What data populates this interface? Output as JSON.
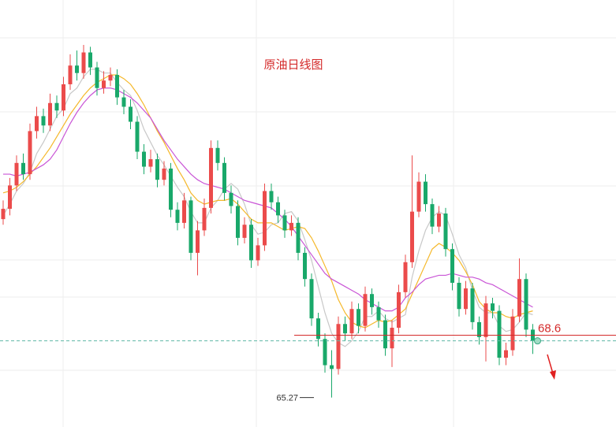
{
  "chart_data": {
    "type": "candlestick",
    "title": "原油日线图",
    "ylim": [
      63.7,
      86.5
    ],
    "up_color": "#eb4b4b",
    "down_color": "#19a86a",
    "open": [
      74.8,
      75.35,
      76.6,
      77.8,
      77.2,
      79.5,
      80.3,
      79.8,
      81.0,
      80.6,
      82.0,
      83.0,
      82.6,
      83.7,
      82.9,
      81.8,
      82.2,
      82.5,
      81.3,
      80.8,
      80.0,
      78.4,
      77.6,
      78.0,
      76.9,
      77.5,
      75.3,
      74.6,
      75.8,
      73.0,
      74.2,
      75.4,
      78.6,
      77.8,
      76.2,
      75.5,
      73.8,
      74.5,
      72.6,
      73.4,
      76.3,
      75.7,
      75.0,
      74.2,
      74.6,
      73.0,
      71.6,
      69.5,
      68.4,
      67.0,
      66.8,
      69.2,
      68.7,
      70.0,
      69.1,
      70.8,
      70.1,
      69.4,
      67.9,
      69.0,
      70.9,
      72.5,
      75.2,
      76.8,
      75.6,
      74.4,
      75.1,
      73.2,
      71.4,
      70.0,
      71.1,
      69.3,
      68.5,
      70.3,
      69.9,
      67.4,
      67.8,
      69.6,
      71.6,
      68.9
    ],
    "high": [
      75.8,
      77.0,
      78.2,
      78.3,
      79.9,
      80.8,
      80.7,
      81.5,
      81.4,
      82.4,
      83.6,
      83.8,
      84.1,
      84.0,
      83.2,
      82.7,
      82.9,
      82.8,
      81.7,
      81.2,
      80.3,
      78.8,
      78.5,
      78.3,
      77.9,
      77.8,
      75.7,
      76.2,
      76.0,
      74.7,
      75.9,
      79.0,
      79.0,
      78.1,
      76.6,
      75.8,
      74.9,
      74.8,
      73.8,
      76.7,
      76.7,
      76.0,
      75.3,
      75.0,
      74.9,
      73.3,
      71.9,
      69.8,
      68.7,
      67.8,
      69.6,
      69.6,
      70.4,
      70.3,
      71.2,
      71.1,
      70.4,
      69.7,
      69.4,
      71.3,
      72.9,
      78.2,
      77.3,
      77.2,
      75.9,
      75.5,
      75.4,
      73.5,
      71.7,
      71.5,
      71.4,
      69.6,
      70.7,
      70.6,
      70.2,
      68.2,
      70.0,
      72.7,
      71.9,
      69.2
    ],
    "low": [
      74.5,
      75.0,
      76.3,
      76.9,
      76.9,
      79.1,
      79.4,
      79.5,
      80.2,
      80.3,
      81.7,
      82.2,
      82.3,
      82.5,
      81.4,
      81.5,
      81.9,
      80.9,
      80.4,
      79.6,
      78.0,
      77.2,
      77.3,
      76.5,
      76.6,
      74.9,
      74.2,
      74.3,
      72.6,
      71.8,
      73.9,
      75.1,
      77.4,
      75.8,
      75.1,
      73.4,
      73.5,
      72.2,
      72.3,
      73.1,
      75.3,
      74.6,
      73.8,
      73.9,
      72.6,
      71.2,
      69.1,
      68.0,
      66.6,
      65.27,
      66.5,
      68.3,
      68.4,
      68.7,
      68.8,
      69.7,
      69.0,
      67.5,
      66.9,
      68.7,
      70.6,
      72.2,
      74.9,
      75.2,
      74.0,
      74.1,
      72.8,
      71.0,
      69.6,
      69.7,
      68.9,
      68.1,
      67.2,
      69.5,
      67.0,
      67.0,
      67.5,
      69.3,
      68.5,
      67.6
    ],
    "close": [
      75.35,
      76.6,
      77.8,
      77.2,
      79.5,
      80.3,
      79.8,
      81.0,
      80.6,
      82.0,
      83.0,
      82.6,
      83.7,
      82.9,
      81.8,
      82.2,
      82.5,
      81.3,
      80.8,
      80.0,
      78.4,
      77.6,
      78.0,
      76.9,
      77.5,
      75.3,
      74.6,
      75.8,
      73.0,
      74.2,
      75.4,
      78.6,
      77.8,
      76.2,
      75.5,
      73.8,
      74.5,
      72.6,
      73.4,
      76.3,
      75.7,
      75.0,
      74.2,
      74.6,
      73.0,
      71.6,
      69.5,
      68.4,
      67.0,
      66.8,
      69.2,
      68.7,
      70.0,
      69.1,
      70.8,
      70.1,
      69.4,
      67.9,
      69.0,
      70.9,
      72.5,
      75.2,
      76.8,
      75.6,
      74.4,
      75.1,
      73.2,
      71.4,
      70.0,
      71.1,
      69.3,
      68.5,
      70.3,
      69.9,
      67.4,
      67.8,
      69.6,
      71.6,
      68.9,
      68.3
    ],
    "series": [
      {
        "color": "#c8c8c8",
        "values": [
          75.0,
          75.6,
          76.3,
          76.7,
          77.3,
          78.3,
          78.9,
          79.6,
          80.3,
          80.7,
          81.5,
          81.8,
          82.4,
          82.8,
          82.8,
          82.6,
          82.6,
          82.1,
          81.7,
          81.4,
          80.6,
          79.6,
          78.9,
          78.2,
          77.7,
          77.1,
          76.5,
          76.0,
          75.2,
          74.6,
          74.6,
          75.4,
          75.8,
          76.4,
          76.7,
          76.4,
          75.6,
          74.5,
          74.0,
          74.1,
          74.5,
          74.6,
          75.1,
          75.2,
          74.7,
          73.7,
          72.6,
          71.2,
          69.8,
          68.7,
          68.2,
          68.0,
          68.3,
          68.8,
          69.6,
          69.6,
          69.9,
          69.5,
          69.3,
          69.5,
          69.7,
          71.7,
          73.1,
          74.2,
          74.9,
          75.2,
          75.0,
          74.0,
          72.9,
          72.2,
          71.0,
          70.1,
          69.8,
          69.8,
          69.1,
          68.8,
          68.9,
          69.3,
          69.8,
          69.7
        ]
      },
      {
        "color": "#f5b82a",
        "values": [
          76.2,
          76.3,
          76.5,
          76.8,
          77.2,
          77.6,
          78.1,
          78.6,
          79.2,
          79.8,
          80.4,
          80.9,
          81.4,
          81.8,
          82.1,
          82.3,
          82.5,
          82.5,
          82.3,
          82.0,
          81.5,
          80.9,
          80.2,
          79.5,
          78.9,
          78.2,
          77.5,
          76.9,
          76.2,
          75.8,
          75.6,
          75.7,
          75.8,
          75.8,
          75.9,
          75.6,
          75.2,
          74.8,
          74.6,
          74.6,
          74.6,
          74.4,
          74.2,
          74.3,
          74.4,
          74.3,
          73.8,
          73.1,
          72.3,
          71.5,
          70.5,
          69.8,
          69.3,
          69.1,
          69.0,
          69.2,
          69.4,
          69.3,
          69.4,
          69.7,
          70.0,
          70.8,
          71.6,
          72.4,
          73.2,
          73.5,
          73.3,
          73.0,
          72.6,
          72.0,
          71.3,
          70.4,
          70.0,
          69.8,
          69.8,
          69.6,
          69.5,
          69.7,
          69.8,
          69.9
        ]
      },
      {
        "color": "#c955d6",
        "values": [
          77.2,
          77.2,
          77.1,
          77.2,
          77.3,
          77.5,
          77.7,
          78.0,
          78.5,
          79.2,
          79.9,
          80.5,
          81.0,
          81.4,
          81.7,
          81.8,
          81.8,
          81.7,
          81.5,
          81.3,
          81.0,
          80.6,
          80.2,
          79.6,
          79.0,
          78.5,
          78.0,
          77.6,
          77.2,
          76.9,
          76.7,
          76.6,
          76.5,
          76.4,
          76.2,
          76.0,
          75.8,
          75.7,
          75.6,
          75.5,
          75.4,
          75.1,
          74.8,
          74.4,
          73.9,
          73.4,
          72.9,
          72.4,
          71.9,
          71.6,
          71.4,
          71.2,
          71.0,
          70.8,
          70.5,
          70.3,
          70.1,
          69.9,
          69.9,
          70.1,
          70.6,
          70.9,
          71.3,
          71.6,
          71.7,
          71.8,
          71.8,
          71.9,
          71.8,
          71.7,
          71.7,
          71.6,
          71.4,
          71.3,
          71.1,
          70.9,
          70.7,
          70.5,
          70.3,
          70.1
        ]
      }
    ],
    "annotations": [
      {
        "value": 68.6,
        "label": "68.6",
        "color": "#d42a2a"
      },
      {
        "value": 65.27,
        "label": "65.27",
        "color": "#333333"
      }
    ]
  }
}
